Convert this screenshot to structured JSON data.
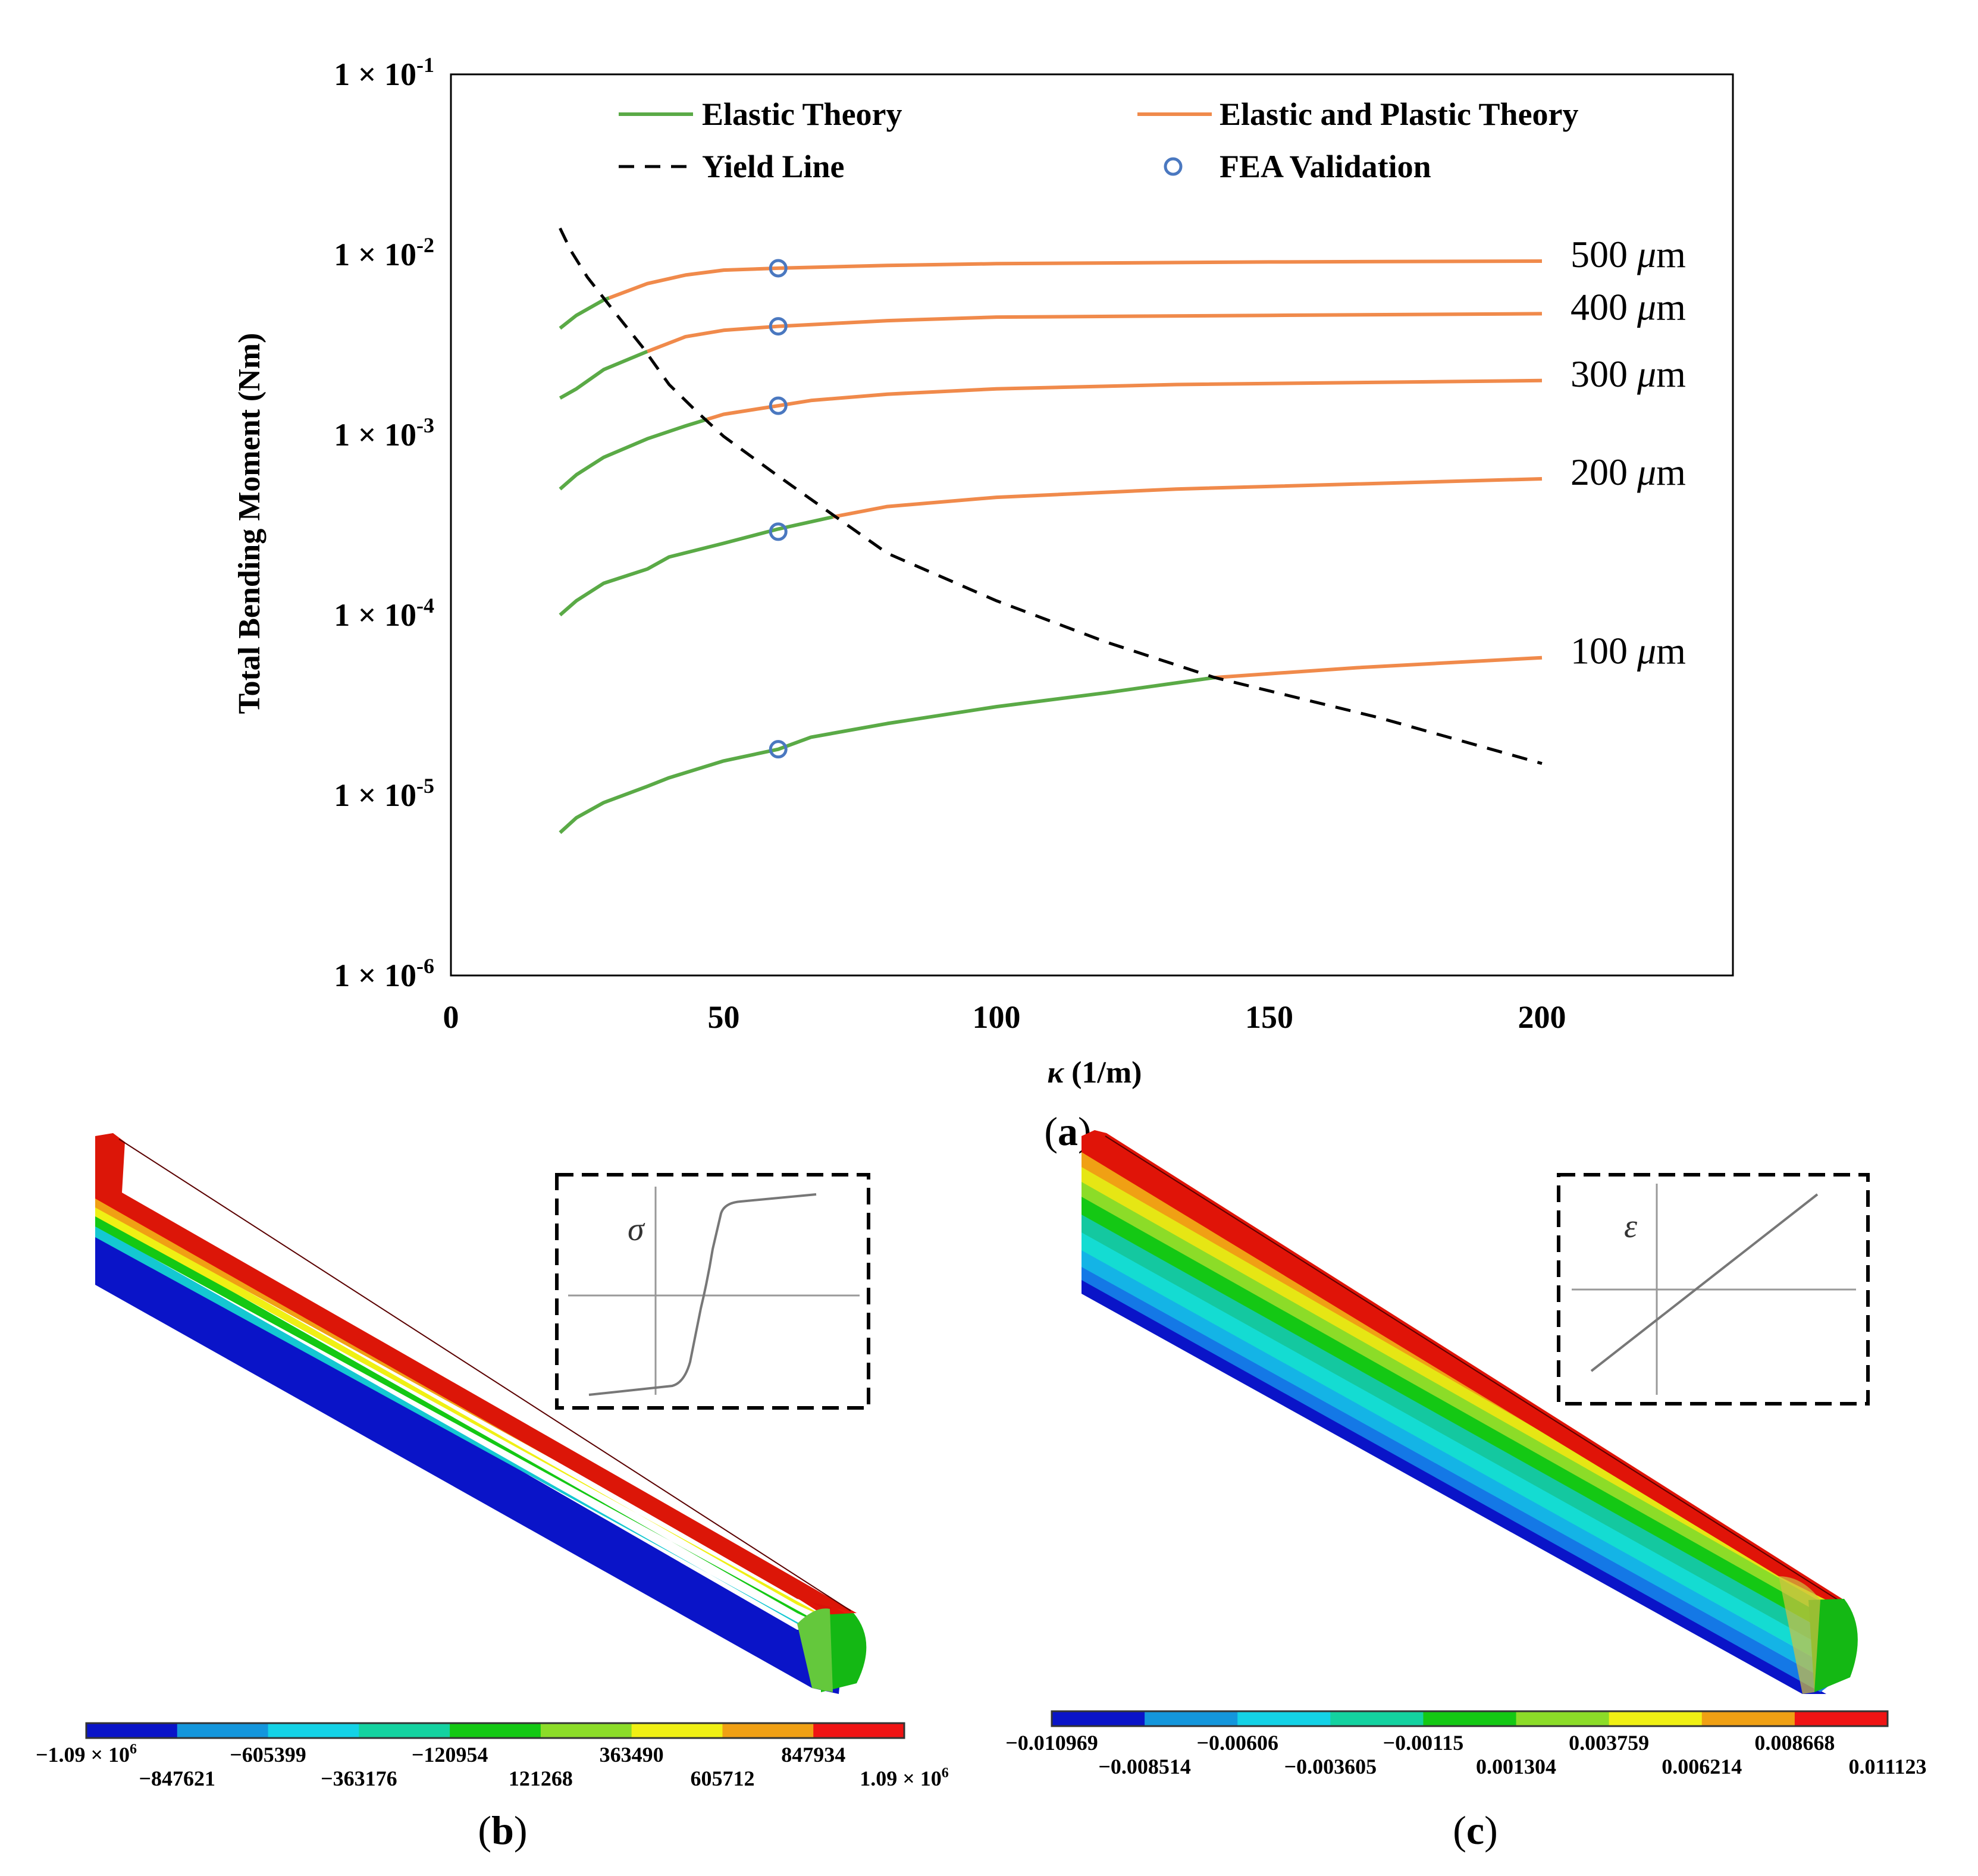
{
  "chart_data": {
    "type": "line",
    "panel_label": "a",
    "ylabel": "Total Bending Moment (Nm)",
    "xlabel_symbol": "κ",
    "xlabel_unit": "(1/m)",
    "yscale": "log",
    "xlim": [
      0,
      235
    ],
    "ylim": [
      1e-06,
      0.1
    ],
    "x_ticks": [
      "0",
      "50",
      "100",
      "150",
      "200"
    ],
    "x_tick_values": [
      0,
      50,
      100,
      150,
      200
    ],
    "y_ticks": [
      {
        "value": 0.1,
        "base": "1 × 10",
        "exp": "-1"
      },
      {
        "value": 0.01,
        "base": "1 × 10",
        "exp": "-2"
      },
      {
        "value": 0.001,
        "base": "1 × 10",
        "exp": "-3"
      },
      {
        "value": 0.0001,
        "base": "1 × 10",
        "exp": "-4"
      },
      {
        "value": 1e-05,
        "base": "1 × 10",
        "exp": "-5"
      },
      {
        "value": 1e-06,
        "base": "1 × 10",
        "exp": "-6"
      }
    ],
    "legend": {
      "elastic": "Elastic Theory",
      "plastic": "Elastic and Plastic Theory",
      "yield": "Yield Line",
      "fea": "FEA Validation"
    },
    "colors": {
      "elastic": "#5aaa46",
      "plastic": "#f08a4b",
      "yield": "#000000",
      "fea": "#4a78c0"
    },
    "series": [
      {
        "name": "500 μm",
        "thickness": "500",
        "unit_mu": "μ",
        "unit_m": "m",
        "x": [
          20,
          23,
          28,
          36,
          43,
          50,
          60,
          80,
          100,
          150,
          200
        ],
        "y": [
          0.0039,
          0.0046,
          0.0056,
          0.0069,
          0.0077,
          0.0082,
          0.0084,
          0.0087,
          0.0089,
          0.0091,
          0.0092
        ],
        "yield_x": 29
      },
      {
        "name": "400 μm",
        "thickness": "400",
        "unit_mu": "μ",
        "unit_m": "m",
        "x": [
          20,
          23,
          28,
          36,
          43,
          50,
          60,
          80,
          100,
          150,
          200
        ],
        "y": [
          0.0016,
          0.0018,
          0.0023,
          0.0029,
          0.0035,
          0.0038,
          0.004,
          0.0043,
          0.0045,
          0.0046,
          0.0047
        ],
        "yield_x": 36
      },
      {
        "name": "300 μm",
        "thickness": "300",
        "unit_mu": "μ",
        "unit_m": "m",
        "x": [
          20,
          23,
          28,
          36,
          43,
          50,
          60,
          66,
          80,
          100,
          133,
          200
        ],
        "y": [
          0.0005,
          0.0006,
          0.00075,
          0.00095,
          0.00112,
          0.0013,
          0.00145,
          0.00155,
          0.00168,
          0.0018,
          0.0019,
          0.002
        ],
        "yield_x": 47
      },
      {
        "name": "200 μm",
        "thickness": "200",
        "unit_mu": "μ",
        "unit_m": "m",
        "x": [
          20,
          23,
          28,
          36,
          40,
          50,
          60,
          70,
          80,
          100,
          133,
          200
        ],
        "y": [
          0.0001,
          0.00012,
          0.00015,
          0.00018,
          0.00021,
          0.00025,
          0.0003,
          0.00035,
          0.0004,
          0.00045,
          0.0005,
          0.00057
        ],
        "yield_x": 70
      },
      {
        "name": "100 μm",
        "thickness": "100",
        "unit_mu": "μ",
        "unit_m": "m",
        "x": [
          20,
          23,
          28,
          36,
          40,
          50,
          60,
          66,
          80,
          100,
          120,
          140,
          166,
          200
        ],
        "y": [
          6.2e-06,
          7.5e-06,
          9.1e-06,
          1.12e-05,
          1.25e-05,
          1.55e-05,
          1.8e-05,
          2.1e-05,
          2.5e-05,
          3.1e-05,
          3.7e-05,
          4.5e-05,
          5.1e-05,
          5.8e-05
        ],
        "yield_x": 140
      }
    ],
    "yield_line": {
      "x": [
        20,
        22,
        25,
        30,
        35,
        40,
        45,
        50,
        60,
        70,
        80,
        100,
        120,
        140,
        170,
        200
      ],
      "y": [
        0.014,
        0.0105,
        0.0075,
        0.0048,
        0.0031,
        0.0019,
        0.00135,
        0.00098,
        0.00059,
        0.00036,
        0.00022,
        0.00012,
        7.1e-05,
        4.5e-05,
        2.7e-05,
        1.5e-05
      ]
    },
    "fea_points": [
      {
        "x": 60,
        "y": 0.0084
      },
      {
        "x": 60,
        "y": 0.004
      },
      {
        "x": 60,
        "y": 0.00145
      },
      {
        "x": 60,
        "y": 0.00029
      },
      {
        "x": 60,
        "y": 1.8e-05
      }
    ]
  },
  "panel_b": {
    "label": "b",
    "inset_symbol": "σ",
    "colorbar_colors": [
      "#0a14c8",
      "#1496dc",
      "#14d2e6",
      "#14d2a0",
      "#14c814",
      "#8cdc28",
      "#f0f014",
      "#f0a014",
      "#f01414"
    ],
    "ticks_top": [
      {
        "text": "−1.09 × 10",
        "sup": "6"
      },
      {
        "text": "−605399"
      },
      {
        "text": "−120954"
      },
      {
        "text": "363490"
      },
      {
        "text": "847934"
      }
    ],
    "ticks_bottom": [
      {
        "text": "−847621"
      },
      {
        "text": "−363176"
      },
      {
        "text": "121268"
      },
      {
        "text": "605712"
      },
      {
        "text": "1.09 × 10",
        "sup": "6"
      }
    ]
  },
  "panel_c": {
    "label": "c",
    "inset_symbol": "ε",
    "colorbar_colors": [
      "#0a14c8",
      "#1496dc",
      "#14d2e6",
      "#14d2a0",
      "#14c814",
      "#8cdc28",
      "#f0f014",
      "#f0a014",
      "#f01414"
    ],
    "ticks_top": [
      {
        "text": "−0.010969"
      },
      {
        "text": "−0.00606"
      },
      {
        "text": "−0.00115"
      },
      {
        "text": "0.003759"
      },
      {
        "text": "0.008668"
      }
    ],
    "ticks_bottom": [
      {
        "text": "−0.008514"
      },
      {
        "text": "−0.003605"
      },
      {
        "text": "0.001304"
      },
      {
        "text": "0.006214"
      },
      {
        "text": "0.011123"
      }
    ]
  }
}
